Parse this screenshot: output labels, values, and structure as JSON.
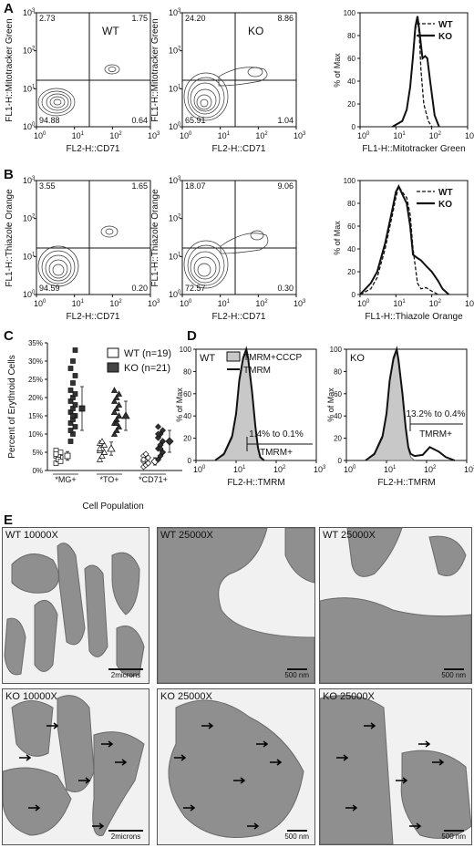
{
  "panels": {
    "A": {
      "letter": "A",
      "contour_wt": {
        "group_label": "WT",
        "quadrants": {
          "ul": "2.73",
          "ur": "1.75",
          "ll": "94.88",
          "lr": "0.64"
        },
        "ylabel": "FL1-H::Mitotracker Green",
        "xlabel": "FL2-H::CD71"
      },
      "contour_ko": {
        "group_label": "KO",
        "quadrants": {
          "ul": "24.20",
          "ur": "8.86",
          "ll": "65.91",
          "lr": "1.04"
        },
        "ylabel": "FL1-H::Mitotracker Green",
        "xlabel": "FL2-H::CD71"
      },
      "histogram": {
        "ylabel": "% of Max",
        "xlabel": "FL1-H::Mitotracker Green",
        "legend": [
          "WT",
          "KO"
        ]
      }
    },
    "B": {
      "letter": "B",
      "contour_wt": {
        "quadrants": {
          "ul": "3.55",
          "ur": "1.65",
          "ll": "94.59",
          "lr": "0.20"
        },
        "ylabel": "FL1-H::Thiazole Orange",
        "xlabel": "FL2-H::CD71"
      },
      "contour_ko": {
        "quadrants": {
          "ul": "18.07",
          "ur": "9.06",
          "ll": "72.57",
          "lr": "0.30"
        },
        "ylabel": "FL1-H::Thiazole Orange",
        "xlabel": "FL2-H::CD71"
      },
      "histogram": {
        "ylabel": "% of Max",
        "xlabel": "FL1-H::Thiazole Orange",
        "legend": [
          "WT",
          "KO"
        ]
      }
    },
    "C": {
      "letter": "C",
      "ylabel": "Percent of Erythroid Cells",
      "xlabel": "Cell Population",
      "legend": [
        "WT (n=19)",
        "KO (n=21)"
      ]
    },
    "D": {
      "letter": "D",
      "wt": {
        "group_label": "WT",
        "legend": [
          "TMRM+CCCP",
          "TMRM"
        ],
        "gate_text": "1.4% to 0.1%",
        "gate_label": "TMRM+",
        "ylabel": "% of Max",
        "xlabel": "FL2-H::TMRM"
      },
      "ko": {
        "group_label": "KO",
        "gate_text": "13.2% to 0.4%",
        "gate_label": "TMRM+",
        "ylabel": "% of Max",
        "xlabel": "FL2-H::TMRM"
      }
    },
    "E": {
      "letter": "E",
      "images": [
        {
          "title": "WT 10000X",
          "scale": "2microns"
        },
        {
          "title": "WT 25000X",
          "scale": "500 nm"
        },
        {
          "title": "WT 25000X",
          "scale": "500 nm"
        },
        {
          "title": "KO 10000X",
          "scale": "2microns"
        },
        {
          "title": "KO 25000X",
          "scale": "500 nm"
        },
        {
          "title": "KO 25000X",
          "scale": "500 nm"
        }
      ]
    }
  },
  "axes": {
    "log_ticks": [
      "10",
      "10",
      "10",
      "10"
    ],
    "log_exps": [
      "0",
      "1",
      "2",
      "3"
    ],
    "pct_ticks": [
      "0",
      "20",
      "40",
      "60",
      "80",
      "100"
    ],
    "c_ticks": [
      "0%",
      "5%",
      "10%",
      "15%",
      "20%",
      "25%",
      "30%",
      "35%"
    ]
  },
  "chart_data": [
    {
      "type": "scatter",
      "panel": "C",
      "ylabel": "Percent of Erythroid Cells",
      "xlabel": "Cell Population",
      "categories": [
        "*MG+",
        "*TO+",
        "*CD71+"
      ],
      "ylim": [
        0,
        35
      ],
      "series": [
        {
          "name": "WT (n=19)",
          "groups": [
            {
              "category": "*MG+",
              "values": [
                2,
                3,
                3.5,
                4,
                4,
                5,
                5.5,
                3,
                2.5,
                4.5
              ],
              "mean": 4,
              "sd": 1.2
            },
            {
              "category": "*TO+",
              "values": [
                3,
                4,
                5,
                5.5,
                6,
                7,
                7.5,
                8,
                5,
                6
              ],
              "mean": 6,
              "sd": 1.8
            },
            {
              "category": "*CD71+",
              "values": [
                1,
                1.5,
                2,
                2.5,
                3,
                3.5,
                4,
                4.5,
                2,
                3
              ],
              "mean": 2.5,
              "sd": 1
            }
          ]
        },
        {
          "name": "KO (n=21)",
          "groups": [
            {
              "category": "*MG+",
              "values": [
                8,
                10,
                12,
                13,
                14,
                15,
                16,
                17,
                18,
                19,
                20,
                21,
                22,
                24,
                26,
                28,
                30,
                33,
                11,
                15
              ],
              "mean": 17,
              "sd": 6
            },
            {
              "category": "*TO+",
              "values": [
                10,
                11,
                12,
                13,
                14,
                15,
                16,
                17,
                18,
                19,
                20,
                21,
                22,
                13,
                15,
                16
              ],
              "mean": 15,
              "sd": 4
            },
            {
              "category": "*CD71+",
              "values": [
                3,
                4,
                5,
                6,
                7,
                8,
                9,
                10,
                11,
                12,
                7,
                8,
                9,
                6,
                5,
                10
              ],
              "mean": 8,
              "sd": 3
            }
          ]
        }
      ]
    },
    {
      "type": "line",
      "panel": "A",
      "xlabel": "FL1-H::Mitotracker Green",
      "ylabel": "% of Max",
      "ylim": [
        0,
        100
      ],
      "x_scale": "log",
      "xlim": [
        1,
        1000
      ],
      "series": [
        {
          "name": "WT",
          "style": "dashed",
          "x": [
            8,
            15,
            20,
            25,
            30,
            35,
            40,
            45,
            50,
            60,
            80,
            100
          ],
          "y": [
            0,
            5,
            15,
            35,
            60,
            85,
            95,
            80,
            50,
            20,
            5,
            0
          ]
        },
        {
          "name": "KO",
          "style": "solid",
          "x": [
            8,
            15,
            20,
            25,
            30,
            35,
            40,
            45,
            55,
            65,
            75,
            90,
            120,
            160
          ],
          "y": [
            0,
            5,
            15,
            35,
            62,
            88,
            97,
            85,
            60,
            62,
            60,
            40,
            10,
            0
          ]
        }
      ]
    },
    {
      "type": "line",
      "panel": "B",
      "xlabel": "FL1-H::Thiazole Orange",
      "ylabel": "% of Max",
      "ylim": [
        0,
        100
      ],
      "x_scale": "log",
      "xlim": [
        1,
        1000
      ],
      "series": [
        {
          "name": "WT",
          "style": "dashed",
          "x": [
            1,
            2,
            3,
            5,
            8,
            10,
            12,
            15,
            20,
            25,
            30,
            40,
            50,
            70,
            100,
            150
          ],
          "y": [
            0,
            5,
            15,
            40,
            70,
            85,
            95,
            90,
            85,
            70,
            40,
            10,
            5,
            6,
            3,
            0
          ]
        },
        {
          "name": "KO",
          "style": "solid",
          "x": [
            1,
            2,
            3,
            5,
            8,
            10,
            12,
            15,
            20,
            25,
            30,
            40,
            50,
            70,
            100,
            150,
            200,
            300
          ],
          "y": [
            0,
            10,
            20,
            45,
            75,
            90,
            95,
            88,
            80,
            60,
            35,
            32,
            30,
            25,
            20,
            12,
            5,
            0
          ]
        }
      ]
    },
    {
      "type": "area",
      "panel": "D-WT",
      "xlabel": "FL2-H::TMRM",
      "ylabel": "% of Max",
      "ylim": [
        0,
        100
      ],
      "x_scale": "log",
      "xlim": [
        1,
        1000
      ],
      "series": [
        {
          "name": "TMRM+CCCP",
          "style": "filled",
          "x": [
            3,
            5,
            8,
            10,
            12,
            15,
            18,
            20,
            25,
            30,
            35,
            40,
            50
          ],
          "y": [
            0,
            5,
            20,
            40,
            70,
            90,
            98,
            90,
            60,
            30,
            10,
            3,
            0
          ]
        },
        {
          "name": "TMRM",
          "style": "solid",
          "x": [
            3,
            5,
            8,
            10,
            12,
            15,
            18,
            20,
            25,
            30,
            35,
            40,
            50
          ],
          "y": [
            0,
            6,
            22,
            42,
            72,
            92,
            100,
            92,
            62,
            32,
            12,
            3,
            0
          ]
        }
      ]
    },
    {
      "type": "area",
      "panel": "D-KO",
      "xlabel": "FL2-H::TMRM",
      "ylabel": "% of Max",
      "ylim": [
        0,
        100
      ],
      "x_scale": "log",
      "xlim": [
        1,
        1000
      ],
      "series": [
        {
          "name": "TMRM+CCCP",
          "style": "filled",
          "x": [
            3,
            5,
            8,
            10,
            12,
            15,
            18,
            20,
            25,
            30,
            35,
            40,
            50
          ],
          "y": [
            0,
            5,
            20,
            40,
            70,
            90,
            98,
            90,
            60,
            30,
            10,
            3,
            0
          ]
        },
        {
          "name": "TMRM",
          "style": "solid",
          "x": [
            3,
            5,
            8,
            10,
            12,
            15,
            18,
            20,
            25,
            30,
            35,
            40,
            50,
            80,
            120,
            200,
            300,
            500
          ],
          "y": [
            0,
            6,
            22,
            42,
            72,
            92,
            100,
            90,
            60,
            30,
            12,
            6,
            4,
            5,
            12,
            8,
            3,
            0
          ]
        }
      ]
    }
  ]
}
